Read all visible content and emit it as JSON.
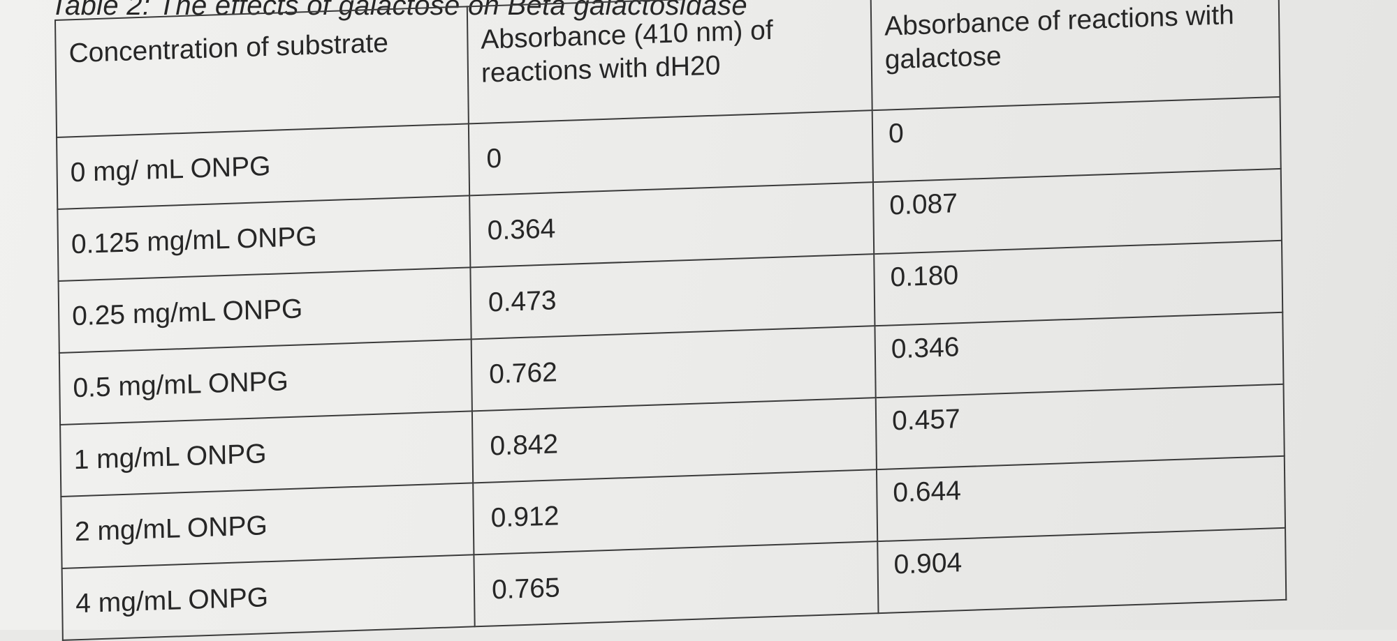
{
  "caption": "Table 2: The effects of galactose on Beta galactosidase",
  "table": {
    "headers": [
      "Concentration of substrate",
      "Absorbance (410 nm) of reactions with dH20",
      "Absorbance of reactions with galactose"
    ],
    "rows": [
      [
        "0 mg/ mL ONPG",
        "0",
        "0"
      ],
      [
        "0.125 mg/mL ONPG",
        "0.364",
        "0.087"
      ],
      [
        "0.25 mg/mL ONPG",
        "0.473",
        "0.180"
      ],
      [
        "0.5 mg/mL ONPG",
        "0.762",
        "0.346"
      ],
      [
        "1 mg/mL ONPG",
        "0.842",
        "0.457"
      ],
      [
        "2 mg/mL ONPG",
        "0.912",
        "0.644"
      ],
      [
        "4 mg/mL ONPG",
        "0.765",
        "0.904"
      ]
    ]
  }
}
